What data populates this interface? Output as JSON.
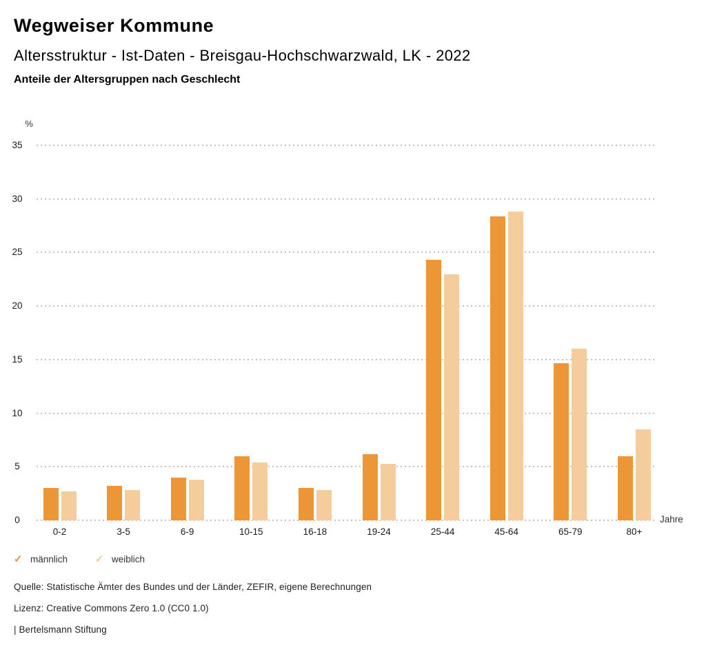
{
  "header": {
    "title": "Wegweiser Kommune",
    "subtitle": "Altersstruktur - Ist-Daten - Breisgau-Hochschwarzwald, LK - 2022",
    "subsubtitle": "Anteile der Altersgruppen nach Geschlecht"
  },
  "chart_data": {
    "type": "bar",
    "title": "Anteile der Altersgruppen nach Geschlecht",
    "ylabel": "%",
    "xlabel": "Jahre",
    "categories": [
      "0-2",
      "3-5",
      "6-9",
      "10-15",
      "16-18",
      "19-24",
      "25-44",
      "45-64",
      "65-79",
      "80+"
    ],
    "series": [
      {
        "name": "männlich",
        "color": "#EC9636",
        "values": [
          3.0,
          3.2,
          4.0,
          6.0,
          3.0,
          6.2,
          24.3,
          28.4,
          14.7,
          6.0
        ]
      },
      {
        "name": "weiblich",
        "color": "#F5CC9B",
        "values": [
          2.7,
          2.8,
          3.8,
          5.4,
          2.8,
          5.3,
          23.0,
          28.8,
          16.0,
          8.5
        ]
      }
    ],
    "ylim": [
      0,
      35
    ],
    "yticks": [
      0,
      5,
      10,
      15,
      20,
      25,
      30,
      35
    ],
    "grid": "horizontal-dotted",
    "grid_color": "#b3b3b3",
    "legend_position": "bottom"
  },
  "legend": {
    "check_glyph": "✓",
    "items": [
      {
        "label": "männlich",
        "check_color": "#E8913A"
      },
      {
        "label": "weiblich",
        "check_color": "#F2CA97"
      }
    ]
  },
  "footer": {
    "source": "Quelle: Statistische Ämter des Bundes und der Länder, ZEFIR, eigene Berechnungen",
    "license": "Lizenz: Creative Commons Zero 1.0 (CC0 1.0)",
    "attribution": "| Bertelsmann Stiftung"
  }
}
